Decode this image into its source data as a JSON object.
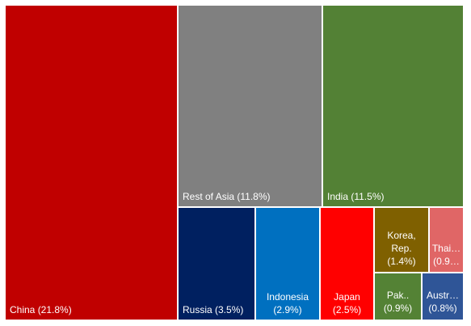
{
  "chart_data": {
    "type": "treemap",
    "title": "",
    "items": [
      {
        "name": "China",
        "label": "China (21.8%)",
        "value": 21.8,
        "color": "#c00000"
      },
      {
        "name": "Rest of Asia",
        "label": "Rest of Asia (11.8%)",
        "value": 11.8,
        "color": "#808080"
      },
      {
        "name": "India",
        "label": "India (11.5%)",
        "value": 11.5,
        "color": "#538135"
      },
      {
        "name": "Russia",
        "label": "Russia (3.5%)",
        "value": 3.5,
        "color": "#002060"
      },
      {
        "name": "Indonesia",
        "label": "Indonesia (2.9%)",
        "value": 2.9,
        "color": "#0070c0"
      },
      {
        "name": "Japan",
        "label": "Japan (2.5%)",
        "value": 2.5,
        "color": "#ff0000"
      },
      {
        "name": "Korea, Rep.",
        "label": "Korea, Rep. (1.4%)",
        "value": 1.4,
        "color": "#7f6000"
      },
      {
        "name": "Thailand",
        "label": "Thai… (0.9…",
        "value": 0.9,
        "color": "#e06666"
      },
      {
        "name": "Pakistan",
        "label": "Pak.. (0.9%)",
        "value": 0.9,
        "color": "#548235"
      },
      {
        "name": "Australia",
        "label": "Austr… (0.8%)",
        "value": 0.8,
        "color": "#2f5597"
      }
    ]
  }
}
